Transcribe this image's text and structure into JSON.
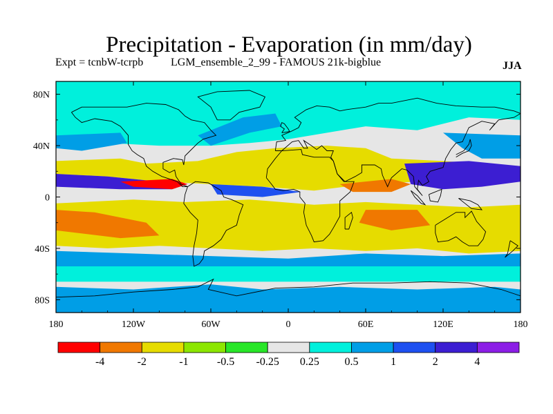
{
  "chart_data": {
    "type": "heatmap",
    "title": "Precipitation - Evaporation (in mm/day)",
    "experiment_label": "Expt = tcnbW-tcrpb",
    "ensemble_label": "LGM_ensemble_2_99 - FAMOUS 21k-bigblue",
    "season": "JJA",
    "x_axis": {
      "range": [
        -180,
        180
      ],
      "ticks": [
        {
          "value": -180,
          "label": "180"
        },
        {
          "value": -120,
          "label": "120W"
        },
        {
          "value": -60,
          "label": "60W"
        },
        {
          "value": 0,
          "label": "0"
        },
        {
          "value": 60,
          "label": "60E"
        },
        {
          "value": 120,
          "label": "120E"
        },
        {
          "value": 180,
          "label": "180"
        }
      ]
    },
    "y_axis": {
      "range": [
        -90,
        90
      ],
      "ticks": [
        {
          "value": 80,
          "label": "80N"
        },
        {
          "value": 40,
          "label": "40N"
        },
        {
          "value": 0,
          "label": "0"
        },
        {
          "value": -40,
          "label": "40S"
        },
        {
          "value": -80,
          "label": "80S"
        }
      ]
    },
    "colorbar": {
      "colors": [
        "#ff0000",
        "#f07800",
        "#e6dc00",
        "#8ce600",
        "#28e628",
        "#e6e6e6",
        "#00f0dc",
        "#009ee6",
        "#1e50f0",
        "#3c1ed2",
        "#8c1ee6"
      ],
      "labels": [
        "-4",
        "-2",
        "-1",
        "-0.5",
        "-0.25",
        "0.25",
        "0.5",
        "1",
        "2",
        "4"
      ]
    },
    "regions": [
      {
        "name": "background",
        "color_index": 5
      },
      {
        "name": "north-atlantic-arctic-band",
        "color_index": 6
      },
      {
        "name": "north-pacific-storm-track",
        "color_index": 7
      },
      {
        "name": "north-atlantic-storm-track",
        "color_index": 7
      },
      {
        "name": "subtropical-dry-belt-north",
        "color_index": 2
      },
      {
        "name": "itcz-pacific",
        "color_index": 9
      },
      {
        "name": "itcz-atlantic",
        "color_index": 8
      },
      {
        "name": "east-pacific-dry",
        "color_index": 0
      },
      {
        "name": "west-pacific-monsoon",
        "color_index": 9
      },
      {
        "name": "indian-ocean-dry",
        "color_index": 1
      },
      {
        "name": "south-subtropical-dry-belt",
        "color_index": 2
      },
      {
        "name": "south-pacific-dry",
        "color_index": 1
      },
      {
        "name": "southern-ocean-wet",
        "color_index": 7
      },
      {
        "name": "southern-ocean-band",
        "color_index": 6
      },
      {
        "name": "antarctic-wet",
        "color_index": 7
      }
    ]
  }
}
